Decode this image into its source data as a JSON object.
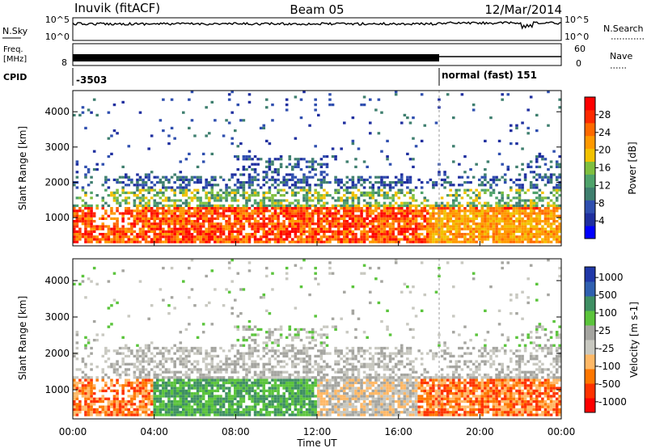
{
  "header": {
    "station": "Inuvik (fitACF)",
    "beam": "Beam 05",
    "date": "12/Mar/2014"
  },
  "noise_panel": {
    "left_label": "N.Sky",
    "right_label": "N.Search",
    "ticks": [
      "10^5",
      "10^0"
    ]
  },
  "freq_panel": {
    "left_label_1": "Freq.",
    "left_label_2": "[MHz]",
    "left_tick": "8",
    "right_label": "Nave",
    "right_ticks": [
      "60",
      "0"
    ]
  },
  "cpid": {
    "label": "CPID",
    "first_value": "-3503",
    "second_value": "normal (fast) 151",
    "change_time_hours": 18
  },
  "colors": {
    "power": [
      "#0000ff",
      "#1f2f9f",
      "#2f4faf",
      "#3f7f6f",
      "#4fa36b",
      "#7fbf3f",
      "#f2c200",
      "#ff9900",
      "#ff6a00",
      "#ff2a00",
      "#ff0000"
    ],
    "velocity": [
      "#ff0000",
      "#ff3300",
      "#ff7700",
      "#ffb866",
      "#c8c8c0",
      "#a5a5a0",
      "#5bc43c",
      "#3f8f63",
      "#3060b0",
      "#2038a8"
    ]
  },
  "chart_data": [
    {
      "type": "heatmap",
      "name": "power",
      "ylabel": "Slant Range [km]",
      "yticks": [
        "1000",
        "2000",
        "3000",
        "4000"
      ],
      "ylim": [
        200,
        4600
      ],
      "colorbar_label": "Power [dB]",
      "colorbar_ticks": [
        "4",
        "8",
        "12",
        "16",
        "20",
        "24",
        "28"
      ],
      "colorbar_range": [
        0,
        32
      ]
    },
    {
      "type": "heatmap",
      "name": "velocity",
      "ylabel": "Slant Range [km]",
      "yticks": [
        "1000",
        "2000",
        "3000",
        "4000"
      ],
      "ylim": [
        200,
        4600
      ],
      "colorbar_label": "Velocity [m s-1]",
      "colorbar_ticks": [
        "1000",
        "500",
        "100",
        "25",
        "-25",
        "-100",
        "-500",
        "-1000"
      ]
    }
  ],
  "time_axis": {
    "label": "Time UT",
    "ticks": [
      "00:00",
      "04:00",
      "08:00",
      "12:00",
      "16:00",
      "20:00",
      "00:00"
    ],
    "range_hours": [
      0,
      24
    ]
  }
}
